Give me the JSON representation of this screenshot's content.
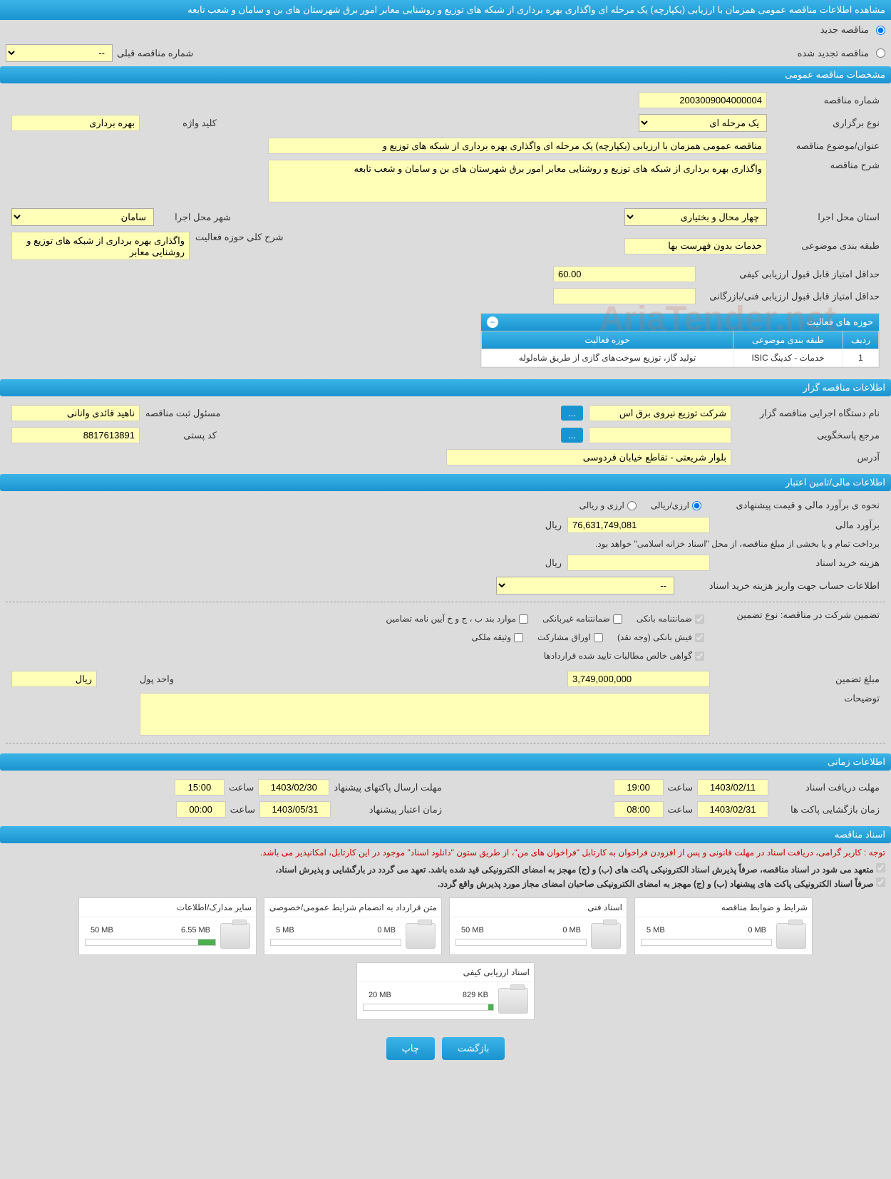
{
  "page_title": "مشاهده اطلاعات مناقصه عمومی همزمان با ارزیابی (یکپارچه) یک مرحله ای واگذاری بهره برداری از شبکه های توزیع و روشنایی معابر امور برق شهرستان های بن و سامان و شعب تابعه",
  "radio": {
    "new": "مناقصه جدید",
    "renewed": "مناقصه تجدید شده"
  },
  "prev_number_label": "شماره مناقصه قبلی",
  "prev_number_value": "--",
  "sections": {
    "general": "مشخصات مناقصه عمومی",
    "org": "اطلاعات مناقصه گزار",
    "financial": "اطلاعات مالی/تامین اعتبار",
    "timing": "اطلاعات زمانی",
    "docs": "اسناد مناقصه"
  },
  "general": {
    "number_label": "شماره مناقصه",
    "number": "2003009004000004",
    "type_label": "نوع برگزاری",
    "type": "یک مرحله ای",
    "keyword_label": "کلید واژه",
    "keyword": "بهره برداری",
    "subject_label": "عنوان/موضوع مناقصه",
    "subject": "مناقصه عمومی همزمان با ارزیابی (یکپارچه) یک مرحله ای واگذاری بهره برداری از شبکه های توزیع و",
    "desc_label": "شرح مناقصه",
    "desc": "واگذاری بهره برداری از شبکه های توزیع و روشنایی معابر امور برق شهرستان های بن و سامان و شعب تابعه",
    "province_label": "استان محل اجرا",
    "province": "چهار محال و بختیاری",
    "city_label": "شهر محل اجرا",
    "city": "سامان",
    "category_label": "طبقه بندی موضوعی",
    "category": "خدمات بدون فهرست بها",
    "scope_label": "شرح کلی حوزه فعالیت",
    "scope": "واگذاری بهره برداری از شبکه های توزیع و روشنایی معابر",
    "min_qual_label": "حداقل امتیاز قابل قبول ارزیابی کیفی",
    "min_qual": "60.00",
    "min_tech_label": "حداقل امتیاز قابل قبول ارزیابی فنی/بازرگانی",
    "min_tech": ""
  },
  "activity_table": {
    "title": "حوزه های فعالیت",
    "cols": {
      "row": "ردیف",
      "category": "طبقه بندی موضوعی",
      "scope": "حوزه فعالیت"
    },
    "rows": [
      {
        "row": "1",
        "category": "خدمات - کدینگ ISIC",
        "scope": "تولید گاز، توزیع سوخت‌های گازی از طریق شاه‌لوله"
      }
    ]
  },
  "org": {
    "exec_label": "نام دستگاه اجرایی مناقصه گزار",
    "exec": "شرکت توزیع نیروی برق اس",
    "reg_mgr_label": "مسئول ثبت مناقصه",
    "reg_mgr": "ناهید قائدی وانانی",
    "responder_label": "مرجع پاسخگویی",
    "responder": "",
    "postal_label": "کد پستی",
    "postal": "8817613891",
    "address_label": "آدرس",
    "address": "بلوار شریعتی - تقاطع خیابان فردوسی"
  },
  "financial": {
    "method_label": "نحوه ی برآورد مالی و قیمت پیشنهادی",
    "method_rial": "ارزی/ریالی",
    "method_both": "ارزی و ریالی",
    "estimate_label": "برآورد مالی",
    "estimate": "76,631,749,081",
    "currency": "ریال",
    "payment_note": "برداخت تمام و یا بخشی از مبلغ مناقصه، از محل \"اسناد خزانه اسلامی\" خواهد بود.",
    "doc_cost_label": "هزینه خرید اسناد",
    "doc_cost": "",
    "account_label": "اطلاعات حساب جهت واریز هزینه خرید اسناد",
    "account": "--",
    "guarantee_label": "تضمین شرکت در مناقصه:   نوع تضمین",
    "chk": {
      "bank": "ضمانتنامه بانکی",
      "nonbank": "ضمانتنامه غیربانکی",
      "bond": "موارد بند ب ، ج و خ آیین نامه تضامین",
      "cash": "فیش بانکی (وجه نقد)",
      "securities": "اوراق مشارکت",
      "property": "وثیقه ملکی",
      "contracts": "گواهی خالص مطالبات تایید شده قراردادها"
    },
    "amount_label": "مبلغ تضمین",
    "amount": "3,749,000,000",
    "unit_label": "واحد پول",
    "unit": "ریال",
    "notes_label": "توضیحات",
    "notes": ""
  },
  "timing": {
    "receive_label": "مهلت دریافت اسناد",
    "receive_date": "1403/02/11",
    "receive_time": "19:00",
    "send_label": "مهلت ارسال پاکتهای پیشنهاد",
    "send_date": "1403/02/30",
    "send_time": "15:00",
    "open_label": "زمان بازگشایی پاکت ها",
    "open_date": "1403/02/31",
    "open_time": "08:00",
    "validity_label": "زمان اعتبار پیشنهاد",
    "validity_date": "1403/05/31",
    "validity_time": "00:00",
    "time_label": "ساعت"
  },
  "docs": {
    "notice": "توجه : کاربر گرامی، دریافت اسناد در مهلت قانونی و پس از افزودن فراخوان به کارتابل \"فراخوان های من\"، از طریق ستون \"دانلود اسناد\" موجود در این کارتابل، امکانپذیر می باشد.",
    "commit1": "متعهد می شود در اسناد مناقصه، صرفاً پذیرش اسناد الکترونیکی پاکت های (ب) و (ج) مهجز به امضای الکترونیکی قید شده باشد. تعهد می گردد در بارگشایی و پذیرش اسناد،",
    "commit2": "صرفاً اسناد الکترونیکی پاکت های پیشنهاد (ب) و (ج) مهجز به امضای الکترونیکی صاحبان امضای مجاز مورد پذیرش واقع گردد.",
    "files": [
      {
        "title": "شرایط و ضوابط مناقصه",
        "used": "0 MB",
        "max": "5 MB",
        "pct": 0
      },
      {
        "title": "اسناد فنی",
        "used": "0 MB",
        "max": "50 MB",
        "pct": 0
      },
      {
        "title": "متن قرارداد به انضمام شرایط عمومی/خصوصی",
        "used": "0 MB",
        "max": "5 MB",
        "pct": 0
      },
      {
        "title": "سایر مدارک/اطلاعات",
        "used": "6.55 MB",
        "max": "50 MB",
        "pct": 13
      },
      {
        "title": "اسناد ارزیابی کیفی",
        "used": "829 KB",
        "max": "20 MB",
        "pct": 4
      }
    ]
  },
  "buttons": {
    "back": "بازگشت",
    "print": "چاپ"
  },
  "watermark": "AriaTender.net",
  "ellipsis": "..."
}
